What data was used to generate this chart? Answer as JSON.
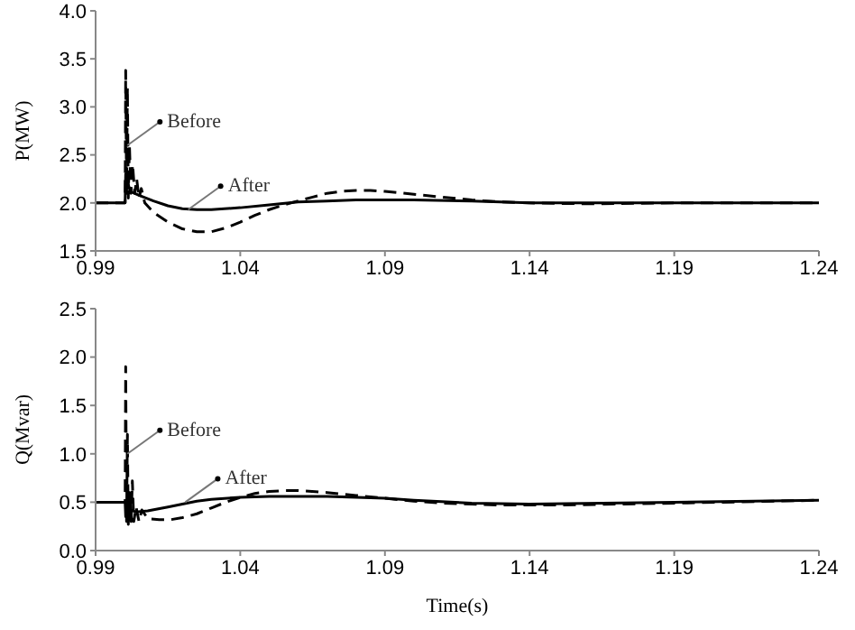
{
  "chart_data": [
    {
      "type": "line",
      "ylabel": "P(MW)",
      "xlim": [
        0.99,
        1.24
      ],
      "xticks": [
        0.99,
        1.04,
        1.09,
        1.14,
        1.19,
        1.24
      ],
      "ylim": [
        1.5,
        4
      ],
      "yticks": [
        1.5,
        {
          "value": 2,
          "label": "2.0"
        },
        2.5,
        {
          "value": 3,
          "label": "3.0"
        },
        3.5,
        {
          "value": 4,
          "label": "4.0"
        }
      ],
      "grid": false,
      "legend": false,
      "marker": "none",
      "series": [
        {
          "color": "#000000",
          "line_style": "dashed",
          "x": [
            0.99,
            1.0,
            1.0002,
            1.0004,
            1.0007,
            1.001,
            1.0013,
            1.0017,
            1.0022,
            1.0028,
            1.0035,
            1.0042,
            1.005,
            1.0058,
            1.007,
            1.01,
            1.015,
            1.02,
            1.025,
            1.03,
            1.035,
            1.04,
            1.045,
            1.05,
            1.055,
            1.06,
            1.065,
            1.07,
            1.075,
            1.08,
            1.085,
            1.09,
            1.1,
            1.11,
            1.12,
            1.13,
            1.14,
            1.16,
            1.19,
            1.24
          ],
          "values": [
            2.0,
            2.0,
            2.0,
            3.38,
            2.1,
            3.2,
            2.05,
            2.6,
            2.1,
            2.4,
            2.1,
            2.25,
            2.05,
            2.15,
            2.0,
            1.9,
            1.8,
            1.73,
            1.7,
            1.7,
            1.74,
            1.8,
            1.87,
            1.93,
            1.98,
            2.02,
            2.06,
            2.1,
            2.12,
            2.13,
            2.13,
            2.12,
            2.09,
            2.06,
            2.03,
            2.01,
            2.0,
            1.99,
            2.0,
            2.0
          ]
        },
        {
          "color": "#000000",
          "line_style": "solid",
          "x": [
            0.99,
            1.0,
            1.0002,
            1.0004,
            1.0008,
            1.0012,
            1.002,
            1.005,
            1.01,
            1.015,
            1.02,
            1.025,
            1.03,
            1.04,
            1.05,
            1.06,
            1.07,
            1.08,
            1.09,
            1.1,
            1.12,
            1.14,
            1.19,
            1.24
          ],
          "values": [
            2.0,
            2.0,
            2.0,
            2.3,
            2.15,
            2.2,
            2.12,
            2.08,
            2.02,
            1.97,
            1.94,
            1.93,
            1.93,
            1.95,
            1.98,
            2.01,
            2.02,
            2.03,
            2.03,
            2.03,
            2.02,
            2.0,
            2.0,
            2.0
          ]
        }
      ],
      "annotations": [
        {
          "text": "Before",
          "x": 1.001,
          "y": 2.6
        },
        {
          "text": "After",
          "x": 1.022,
          "y": 1.93
        }
      ]
    },
    {
      "type": "line",
      "ylabel": "Q(Mvar)",
      "xlabel": "Time(s)",
      "xlim": [
        0.99,
        1.24
      ],
      "xticks": [
        0.99,
        1.04,
        1.09,
        1.14,
        1.19,
        1.24
      ],
      "ylim": [
        0,
        2.5
      ],
      "yticks": [
        {
          "value": 0,
          "label": "0.0"
        },
        0.5,
        {
          "value": 1,
          "label": "1.0"
        },
        1.5,
        {
          "value": 2,
          "label": "2.0"
        },
        2.5
      ],
      "grid": false,
      "legend": false,
      "marker": "none",
      "series": [
        {
          "color": "#000000",
          "line_style": "dashed",
          "x": [
            0.99,
            1.0,
            1.0002,
            1.0004,
            1.0007,
            1.001,
            1.0013,
            1.0018,
            1.0023,
            1.0027,
            1.0032,
            1.004,
            1.005,
            1.006,
            1.008,
            1.012,
            1.016,
            1.02,
            1.025,
            1.03,
            1.035,
            1.04,
            1.045,
            1.05,
            1.055,
            1.06,
            1.07,
            1.08,
            1.09,
            1.1,
            1.11,
            1.12,
            1.13,
            1.15,
            1.19,
            1.24
          ],
          "values": [
            0.5,
            0.5,
            0.5,
            1.9,
            0.3,
            1.2,
            0.27,
            0.6,
            0.3,
            0.72,
            0.3,
            0.45,
            0.3,
            0.42,
            0.33,
            0.32,
            0.32,
            0.34,
            0.38,
            0.44,
            0.5,
            0.55,
            0.59,
            0.61,
            0.62,
            0.62,
            0.6,
            0.57,
            0.54,
            0.51,
            0.49,
            0.48,
            0.47,
            0.47,
            0.49,
            0.52
          ]
        },
        {
          "color": "#000000",
          "line_style": "solid",
          "x": [
            0.99,
            1.0,
            1.0002,
            1.0004,
            1.0008,
            1.0012,
            1.002,
            1.004,
            1.008,
            1.015,
            1.02,
            1.025,
            1.03,
            1.04,
            1.05,
            1.06,
            1.07,
            1.08,
            1.09,
            1.1,
            1.12,
            1.14,
            1.19,
            1.24
          ],
          "values": [
            0.5,
            0.5,
            0.5,
            0.35,
            0.45,
            0.38,
            0.42,
            0.4,
            0.41,
            0.45,
            0.48,
            0.51,
            0.53,
            0.55,
            0.56,
            0.56,
            0.56,
            0.55,
            0.54,
            0.52,
            0.49,
            0.48,
            0.5,
            0.52
          ]
        }
      ],
      "annotations": [
        {
          "text": "Before",
          "x": 1.001,
          "y": 1.0
        },
        {
          "text": "After",
          "x": 1.021,
          "y": 0.5
        }
      ]
    }
  ]
}
